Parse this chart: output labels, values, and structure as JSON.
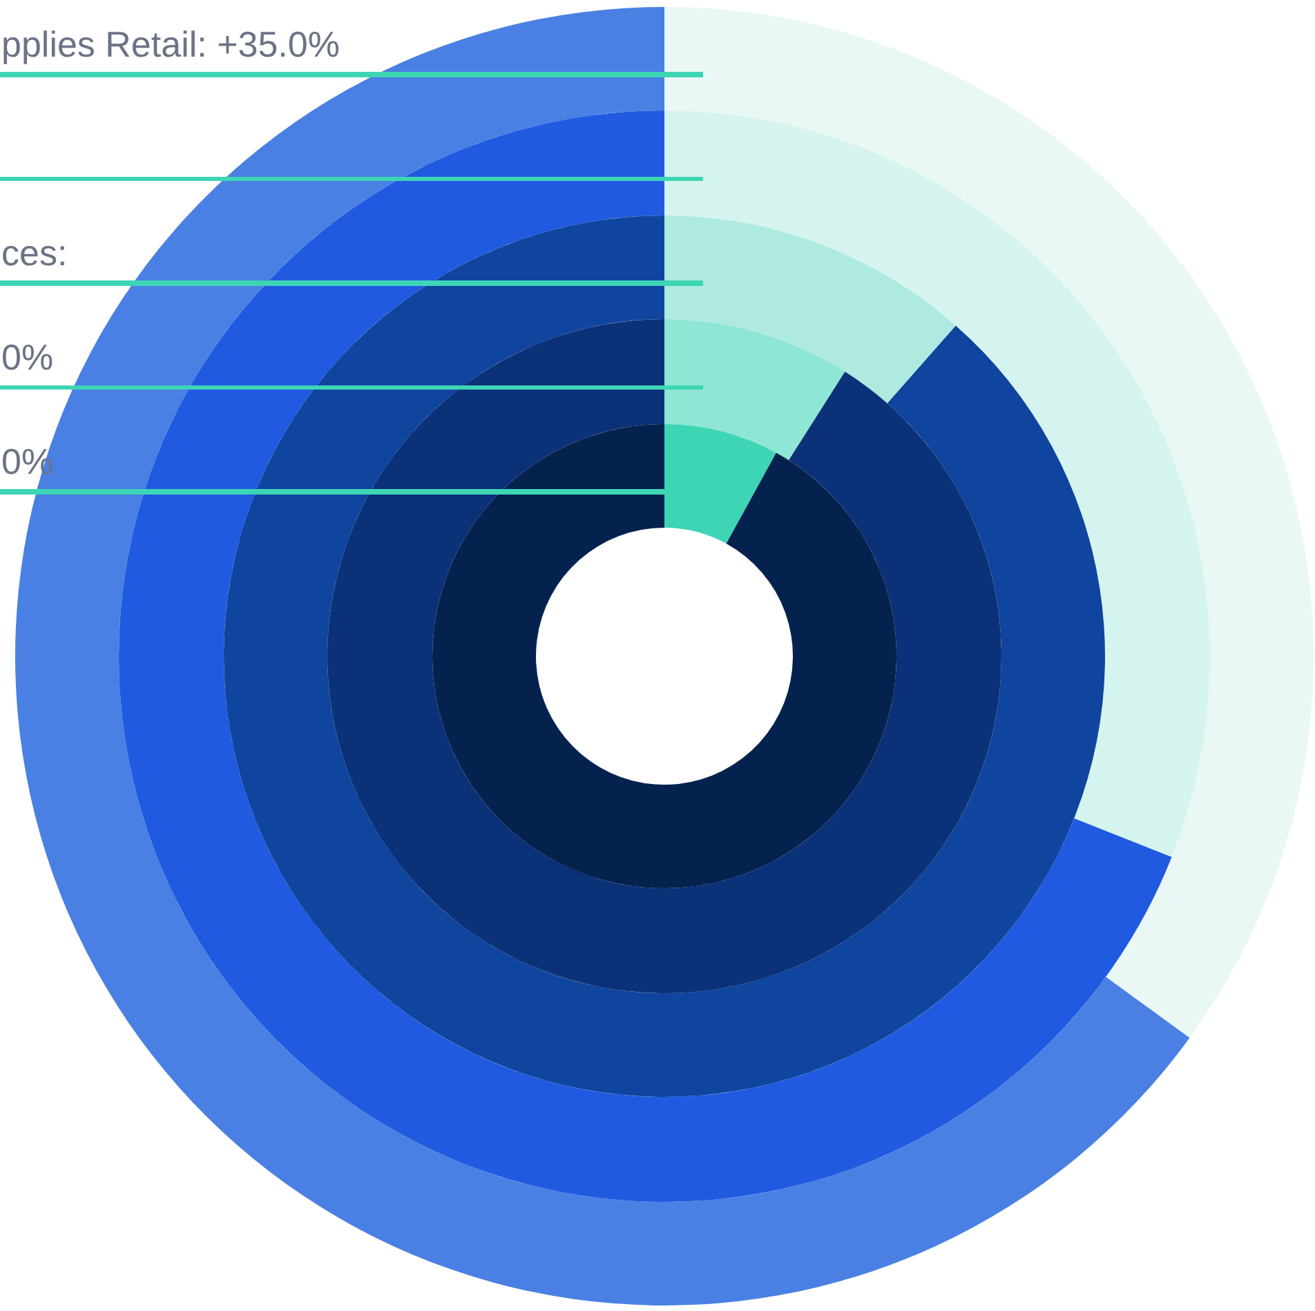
{
  "chart_data": [
    {
      "type": "donut",
      "categories": [
        null,
        null
      ],
      "values": [
        35,
        65
      ],
      "colors": [
        "#e9f8f4",
        "#4a80e3"
      ],
      "annotations": [
        "pplies Retail: +35.0%"
      ]
    },
    {
      "type": "donut",
      "categories": [
        null,
        null
      ],
      "values": [
        31,
        69
      ],
      "colors": [
        "#d6f4ef",
        "#1f5ae0"
      ]
    },
    {
      "type": "donut",
      "categories": [
        null,
        null
      ],
      "values": [
        11.5,
        88.5
      ],
      "colors": [
        "#aeeadf",
        "#0f459e"
      ],
      "annotations": [
        "ces:"
      ]
    },
    {
      "type": "donut",
      "categories": [
        null,
        null
      ],
      "values": [
        9,
        91
      ],
      "colors": [
        "#8ee6d4",
        "#0b3178"
      ],
      "annotations": [
        "0%"
      ]
    },
    {
      "type": "donut",
      "categories": [
        null,
        null
      ],
      "values": [
        8,
        92
      ],
      "colors": [
        "#3ed5b5",
        "#05224f"
      ],
      "annotations": [
        "0%"
      ]
    }
  ]
}
